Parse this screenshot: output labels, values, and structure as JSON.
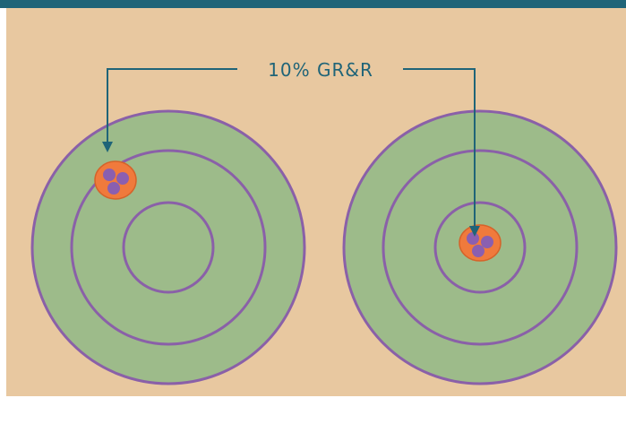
{
  "label": "10% GR&R",
  "colors": {
    "top_bar": "#1f6478",
    "background": "#e8c8a0",
    "target_fill": "#9dbb8a",
    "ring_stroke": "#8a60a8",
    "cluster_fill": "#f07a3c",
    "cluster_stroke": "#d5632a",
    "dot_fill": "#8a5fb0",
    "arrow": "#1f6478",
    "label_text": "#1f6478"
  },
  "targets": [
    {
      "name": "target-left",
      "cluster": "off-center"
    },
    {
      "name": "target-right",
      "cluster": "centered"
    }
  ]
}
